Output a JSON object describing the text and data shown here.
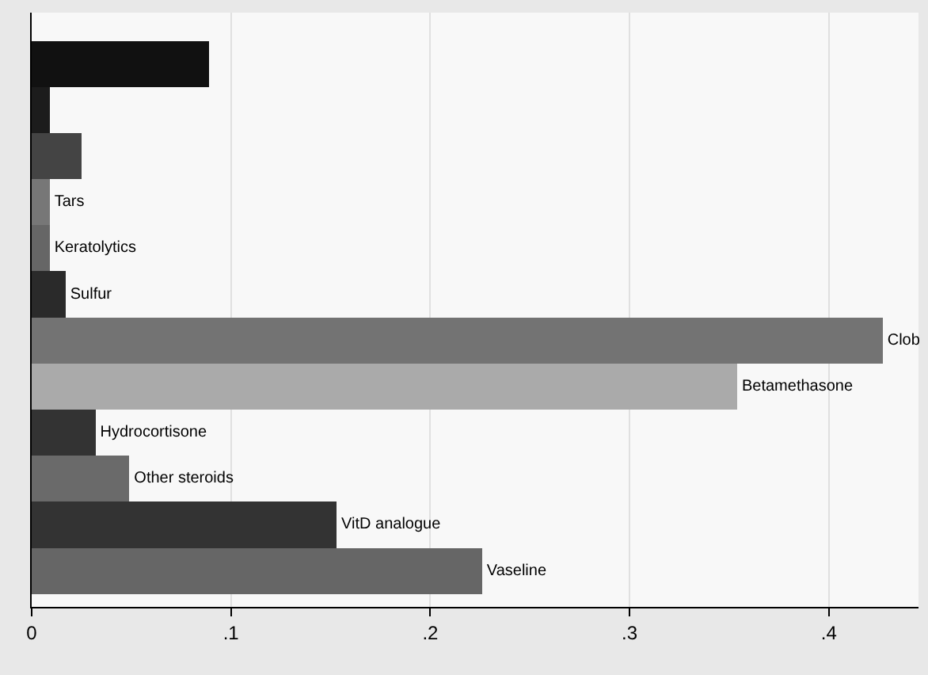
{
  "chart_data": {
    "type": "bar",
    "orientation": "horizontal",
    "categories": [
      null,
      null,
      null,
      "Tars",
      "Keratolytics",
      "Sulfur",
      "Clob",
      "Betamethasone",
      "Hydrocortisone",
      "Other steroids",
      "VitD analogue",
      "Vaseline"
    ],
    "values": [
      0.089,
      0.009,
      0.025,
      0.009,
      0.009,
      0.017,
      0.427,
      0.354,
      0.032,
      0.049,
      0.153,
      0.226
    ],
    "colors": [
      "#111111",
      "#1c1c1c",
      "#444444",
      "#777777",
      "#666666",
      "#2a2a2a",
      "#737373",
      "#aaaaaa",
      "#333333",
      "#6a6a6a",
      "#333333",
      "#666666"
    ],
    "xlim": [
      0,
      0.445
    ],
    "xticks": [
      0,
      {
        "value": 0.1,
        "label": ".1"
      },
      {
        "value": 0.2,
        "label": ".2"
      },
      {
        "value": 0.3,
        "label": ".3"
      },
      {
        "value": 0.4,
        "label": ".4"
      }
    ],
    "grid": "x",
    "tick_labels": "x"
  }
}
